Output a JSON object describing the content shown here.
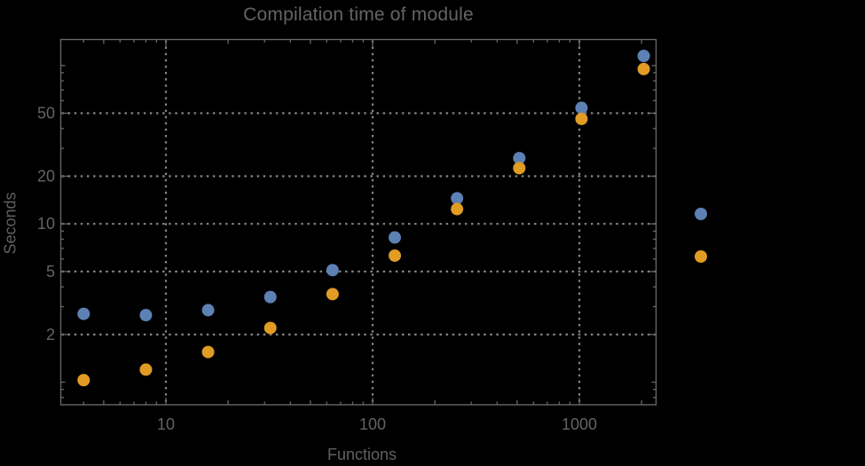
{
  "window": {
    "background_color": "#000000"
  },
  "chart_data": {
    "type": "scatter",
    "x_scale": "log",
    "y_scale": "log",
    "title": "Compilation time of module",
    "xlabel": "Functions",
    "ylabel": "Seconds",
    "x": [
      4,
      8,
      16,
      32,
      64,
      128,
      256,
      512,
      1024,
      2048
    ],
    "series": [
      {
        "name": "series-blue",
        "color": "#5e81b5",
        "values": [
          2.7,
          2.65,
          2.85,
          3.45,
          5.1,
          8.2,
          14.5,
          26,
          54,
          115
        ]
      },
      {
        "name": "series-orange",
        "color": "#e19c24",
        "values": [
          1.03,
          1.2,
          1.55,
          2.2,
          3.6,
          6.3,
          12.4,
          22.5,
          46,
          95
        ]
      }
    ],
    "x_tick_values": [
      10,
      100,
      1000
    ],
    "x_tick_labels": [
      "10",
      "100",
      "1000"
    ],
    "y_tick_values": [
      2,
      5,
      10,
      20,
      50
    ],
    "y_tick_labels": [
      "2",
      "5",
      "10",
      "20",
      "50"
    ],
    "xlim": [
      3.1,
      2350
    ],
    "ylim": [
      0.72,
      146
    ],
    "grid": {
      "style": "dotted",
      "color": "#848484"
    },
    "legend": {
      "markers": [
        {
          "name": "legend-marker-blue",
          "color": "#5e81b5"
        },
        {
          "name": "legend-marker-orange",
          "color": "#e19c24"
        }
      ]
    }
  },
  "styles": {
    "frame_color": "#666666",
    "tick_label_color": "#636363",
    "title_color": "#646464"
  }
}
